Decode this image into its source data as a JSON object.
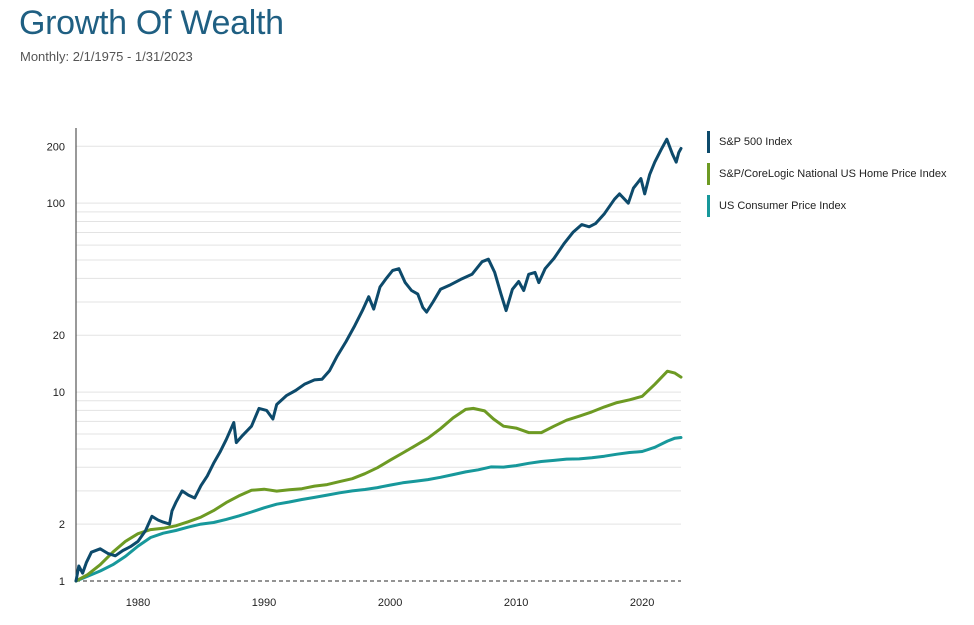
{
  "chart_data": {
    "type": "line",
    "title": "Growth Of Wealth",
    "subtitle": "Monthly: 2/1/1975 - 1/31/2023",
    "yscale": "log",
    "ylim": [
      1,
      250
    ],
    "xlim": [
      1975.08,
      2023.08
    ],
    "y_ticks": [
      1,
      2,
      10,
      20,
      100,
      200
    ],
    "y_tick_labels": [
      "1",
      "2",
      "10",
      "20",
      "100",
      "200"
    ],
    "x_ticks": [
      1980,
      1990,
      2000,
      2010,
      2020
    ],
    "x_tick_labels": [
      "1980",
      "1990",
      "2000",
      "2010",
      "2020"
    ],
    "reference_line": 1,
    "legend_position": "right",
    "series": [
      {
        "name": "S&P 500 Index",
        "color": "#0d4a6b",
        "points": [
          [
            1975.08,
            1.0
          ],
          [
            1975.3,
            1.2
          ],
          [
            1975.6,
            1.1
          ],
          [
            1975.9,
            1.25
          ],
          [
            1976.3,
            1.42
          ],
          [
            1977.0,
            1.48
          ],
          [
            1977.6,
            1.4
          ],
          [
            1978.2,
            1.36
          ],
          [
            1978.8,
            1.45
          ],
          [
            1979.4,
            1.52
          ],
          [
            1980.0,
            1.62
          ],
          [
            1980.6,
            1.85
          ],
          [
            1981.1,
            2.2
          ],
          [
            1981.6,
            2.1
          ],
          [
            1982.0,
            2.05
          ],
          [
            1982.5,
            2.0
          ],
          [
            1982.7,
            2.35
          ],
          [
            1983.0,
            2.6
          ],
          [
            1983.5,
            3.0
          ],
          [
            1984.0,
            2.85
          ],
          [
            1984.5,
            2.75
          ],
          [
            1985.0,
            3.2
          ],
          [
            1985.5,
            3.6
          ],
          [
            1986.0,
            4.2
          ],
          [
            1986.5,
            4.8
          ],
          [
            1987.0,
            5.6
          ],
          [
            1987.6,
            6.9
          ],
          [
            1987.8,
            5.4
          ],
          [
            1988.3,
            5.9
          ],
          [
            1989.0,
            6.6
          ],
          [
            1989.6,
            8.2
          ],
          [
            1990.2,
            8.0
          ],
          [
            1990.7,
            7.2
          ],
          [
            1991.0,
            8.6
          ],
          [
            1991.8,
            9.6
          ],
          [
            1992.5,
            10.2
          ],
          [
            1993.2,
            11.0
          ],
          [
            1994.0,
            11.6
          ],
          [
            1994.6,
            11.7
          ],
          [
            1995.2,
            13.0
          ],
          [
            1995.8,
            15.5
          ],
          [
            1996.5,
            18.5
          ],
          [
            1997.2,
            22.5
          ],
          [
            1997.8,
            27.0
          ],
          [
            1998.3,
            32.0
          ],
          [
            1998.7,
            27.5
          ],
          [
            1999.2,
            36.0
          ],
          [
            1999.7,
            40.0
          ],
          [
            2000.2,
            44.0
          ],
          [
            2000.7,
            45.0
          ],
          [
            2001.2,
            38.0
          ],
          [
            2001.7,
            34.5
          ],
          [
            2002.2,
            33.0
          ],
          [
            2002.6,
            28.0
          ],
          [
            2002.9,
            26.5
          ],
          [
            2003.4,
            30.0
          ],
          [
            2004.0,
            35.0
          ],
          [
            2004.8,
            37.0
          ],
          [
            2005.6,
            39.5
          ],
          [
            2006.5,
            42.0
          ],
          [
            2007.3,
            49.0
          ],
          [
            2007.8,
            50.5
          ],
          [
            2008.3,
            43.0
          ],
          [
            2008.8,
            33.0
          ],
          [
            2009.2,
            27.0
          ],
          [
            2009.7,
            35.0
          ],
          [
            2010.2,
            38.5
          ],
          [
            2010.6,
            34.5
          ],
          [
            2011.0,
            42.0
          ],
          [
            2011.5,
            43.0
          ],
          [
            2011.8,
            38.0
          ],
          [
            2012.3,
            45.0
          ],
          [
            2013.0,
            51.0
          ],
          [
            2013.8,
            61.0
          ],
          [
            2014.5,
            70.0
          ],
          [
            2015.2,
            77.0
          ],
          [
            2015.8,
            75.0
          ],
          [
            2016.3,
            78.0
          ],
          [
            2017.0,
            88.0
          ],
          [
            2017.8,
            105.0
          ],
          [
            2018.2,
            112.0
          ],
          [
            2018.9,
            100.0
          ],
          [
            2019.3,
            120.0
          ],
          [
            2019.9,
            135.0
          ],
          [
            2020.2,
            112.0
          ],
          [
            2020.6,
            142.0
          ],
          [
            2021.0,
            165.0
          ],
          [
            2021.5,
            192.0
          ],
          [
            2021.95,
            218.0
          ],
          [
            2022.4,
            182.0
          ],
          [
            2022.7,
            165.0
          ],
          [
            2022.9,
            185.0
          ],
          [
            2023.08,
            195.0
          ]
        ]
      },
      {
        "name": "S&P/CoreLogic National US Home Price Index",
        "color": "#6d9a23",
        "points": [
          [
            1975.08,
            1.0
          ],
          [
            1976.0,
            1.08
          ],
          [
            1977.0,
            1.22
          ],
          [
            1978.0,
            1.42
          ],
          [
            1979.0,
            1.62
          ],
          [
            1980.0,
            1.78
          ],
          [
            1981.0,
            1.87
          ],
          [
            1982.0,
            1.9
          ],
          [
            1983.0,
            1.96
          ],
          [
            1984.0,
            2.06
          ],
          [
            1985.0,
            2.18
          ],
          [
            1986.0,
            2.36
          ],
          [
            1987.0,
            2.6
          ],
          [
            1988.0,
            2.82
          ],
          [
            1989.0,
            3.02
          ],
          [
            1990.0,
            3.06
          ],
          [
            1991.0,
            2.99
          ],
          [
            1992.0,
            3.04
          ],
          [
            1993.0,
            3.08
          ],
          [
            1994.0,
            3.18
          ],
          [
            1995.0,
            3.24
          ],
          [
            1996.0,
            3.36
          ],
          [
            1997.0,
            3.48
          ],
          [
            1998.0,
            3.7
          ],
          [
            1999.0,
            3.98
          ],
          [
            2000.0,
            4.36
          ],
          [
            2001.0,
            4.76
          ],
          [
            2002.0,
            5.2
          ],
          [
            2003.0,
            5.7
          ],
          [
            2004.0,
            6.4
          ],
          [
            2005.0,
            7.3
          ],
          [
            2006.0,
            8.1
          ],
          [
            2006.6,
            8.2
          ],
          [
            2007.5,
            7.95
          ],
          [
            2008.2,
            7.2
          ],
          [
            2009.0,
            6.6
          ],
          [
            2010.0,
            6.45
          ],
          [
            2011.0,
            6.1
          ],
          [
            2012.0,
            6.1
          ],
          [
            2013.0,
            6.6
          ],
          [
            2014.0,
            7.1
          ],
          [
            2015.0,
            7.45
          ],
          [
            2016.0,
            7.85
          ],
          [
            2017.0,
            8.35
          ],
          [
            2018.0,
            8.8
          ],
          [
            2019.0,
            9.1
          ],
          [
            2020.0,
            9.5
          ],
          [
            2021.0,
            11.0
          ],
          [
            2022.0,
            12.9
          ],
          [
            2022.6,
            12.6
          ],
          [
            2023.08,
            12.0
          ]
        ]
      },
      {
        "name": "US Consumer Price Index",
        "color": "#17989b",
        "points": [
          [
            1975.08,
            1.0
          ],
          [
            1976.0,
            1.06
          ],
          [
            1977.0,
            1.13
          ],
          [
            1978.0,
            1.22
          ],
          [
            1979.0,
            1.35
          ],
          [
            1980.0,
            1.53
          ],
          [
            1981.0,
            1.7
          ],
          [
            1982.0,
            1.79
          ],
          [
            1983.0,
            1.85
          ],
          [
            1984.0,
            1.93
          ],
          [
            1985.0,
            2.0
          ],
          [
            1986.0,
            2.04
          ],
          [
            1987.0,
            2.12
          ],
          [
            1988.0,
            2.21
          ],
          [
            1989.0,
            2.32
          ],
          [
            1990.0,
            2.44
          ],
          [
            1991.0,
            2.55
          ],
          [
            1992.0,
            2.62
          ],
          [
            1993.0,
            2.7
          ],
          [
            1994.0,
            2.77
          ],
          [
            1995.0,
            2.85
          ],
          [
            1996.0,
            2.93
          ],
          [
            1997.0,
            3.0
          ],
          [
            1998.0,
            3.05
          ],
          [
            1999.0,
            3.12
          ],
          [
            2000.0,
            3.22
          ],
          [
            2001.0,
            3.31
          ],
          [
            2002.0,
            3.37
          ],
          [
            2003.0,
            3.44
          ],
          [
            2004.0,
            3.54
          ],
          [
            2005.0,
            3.66
          ],
          [
            2006.0,
            3.78
          ],
          [
            2007.0,
            3.88
          ],
          [
            2008.0,
            4.02
          ],
          [
            2009.0,
            4.01
          ],
          [
            2010.0,
            4.08
          ],
          [
            2011.0,
            4.2
          ],
          [
            2012.0,
            4.29
          ],
          [
            2013.0,
            4.35
          ],
          [
            2014.0,
            4.42
          ],
          [
            2015.0,
            4.43
          ],
          [
            2016.0,
            4.49
          ],
          [
            2017.0,
            4.58
          ],
          [
            2018.0,
            4.69
          ],
          [
            2019.0,
            4.79
          ],
          [
            2020.0,
            4.85
          ],
          [
            2021.0,
            5.1
          ],
          [
            2022.0,
            5.5
          ],
          [
            2022.6,
            5.7
          ],
          [
            2023.08,
            5.75
          ]
        ]
      }
    ]
  }
}
